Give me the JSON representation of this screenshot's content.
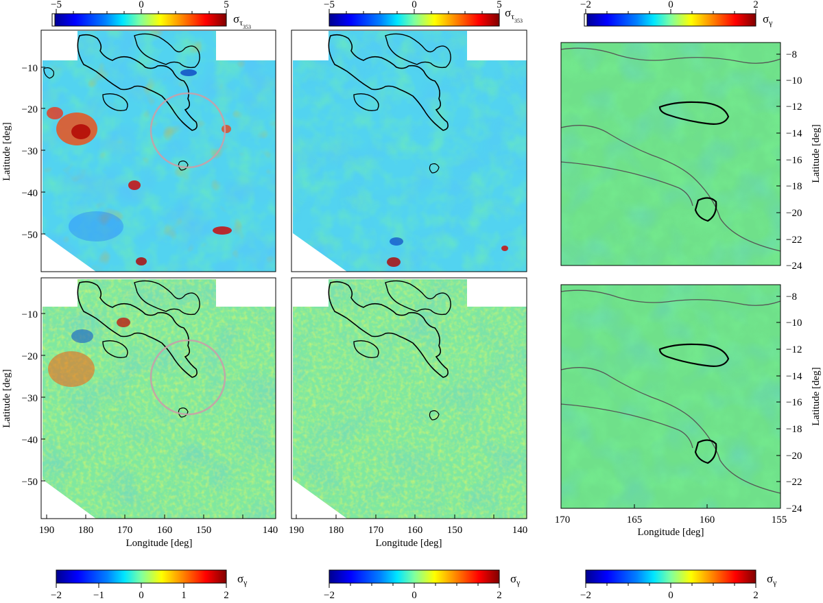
{
  "panels": {
    "left": {
      "ylabel": "Latitude [deg]",
      "xlabel": "Longitude [deg]",
      "xticks": [
        "190",
        "180",
        "170",
        "160",
        "150",
        "140"
      ],
      "yticks": [
        "−10",
        "−20",
        "−30",
        "−40",
        "−50"
      ]
    },
    "middle": {
      "xlabel": "Longitude [deg]",
      "xticks": [
        "190",
        "180",
        "170",
        "160",
        "150",
        "140"
      ]
    },
    "right": {
      "ylabel": "Latitude [deg]",
      "xlabel": "Longitude [deg]",
      "xticks": [
        "170",
        "165",
        "160",
        "155"
      ],
      "yticks": [
        "−8",
        "−10",
        "−12",
        "−14",
        "−16",
        "−18",
        "−20",
        "−22",
        "−24"
      ]
    }
  },
  "colorbars": {
    "top_left": {
      "ticks": [
        "−5",
        "0",
        "5"
      ],
      "label": "σ",
      "sub": "τ",
      "subsub": "353"
    },
    "top_mid": {
      "ticks": [
        "−5",
        "0",
        "5"
      ],
      "label": "σ",
      "sub": "τ",
      "subsub": "353"
    },
    "top_right": {
      "ticks": [
        "−2",
        "0",
        "2"
      ],
      "label": "σ",
      "sub": "γ"
    },
    "bot_left": {
      "ticks": [
        "−2",
        "−1",
        "0",
        "1",
        "2"
      ],
      "label": "σ",
      "sub": "γ"
    },
    "bot_mid": {
      "ticks": [
        "−2",
        "0",
        "2"
      ],
      "label": "σ",
      "sub": "γ"
    },
    "bot_right": {
      "ticks": [
        "−2",
        "0",
        "2"
      ],
      "label": "σ",
      "sub": "γ"
    }
  },
  "colors": {
    "colormap": [
      "#00008f",
      "#0000ff",
      "#0080ff",
      "#00e6ff",
      "#7fffa0",
      "#ffff00",
      "#ff8000",
      "#ff0000",
      "#800000"
    ],
    "background": "#40d0f0",
    "contour": "#000000",
    "contour_gray": "#555555",
    "ring": "#c8a0a8"
  }
}
